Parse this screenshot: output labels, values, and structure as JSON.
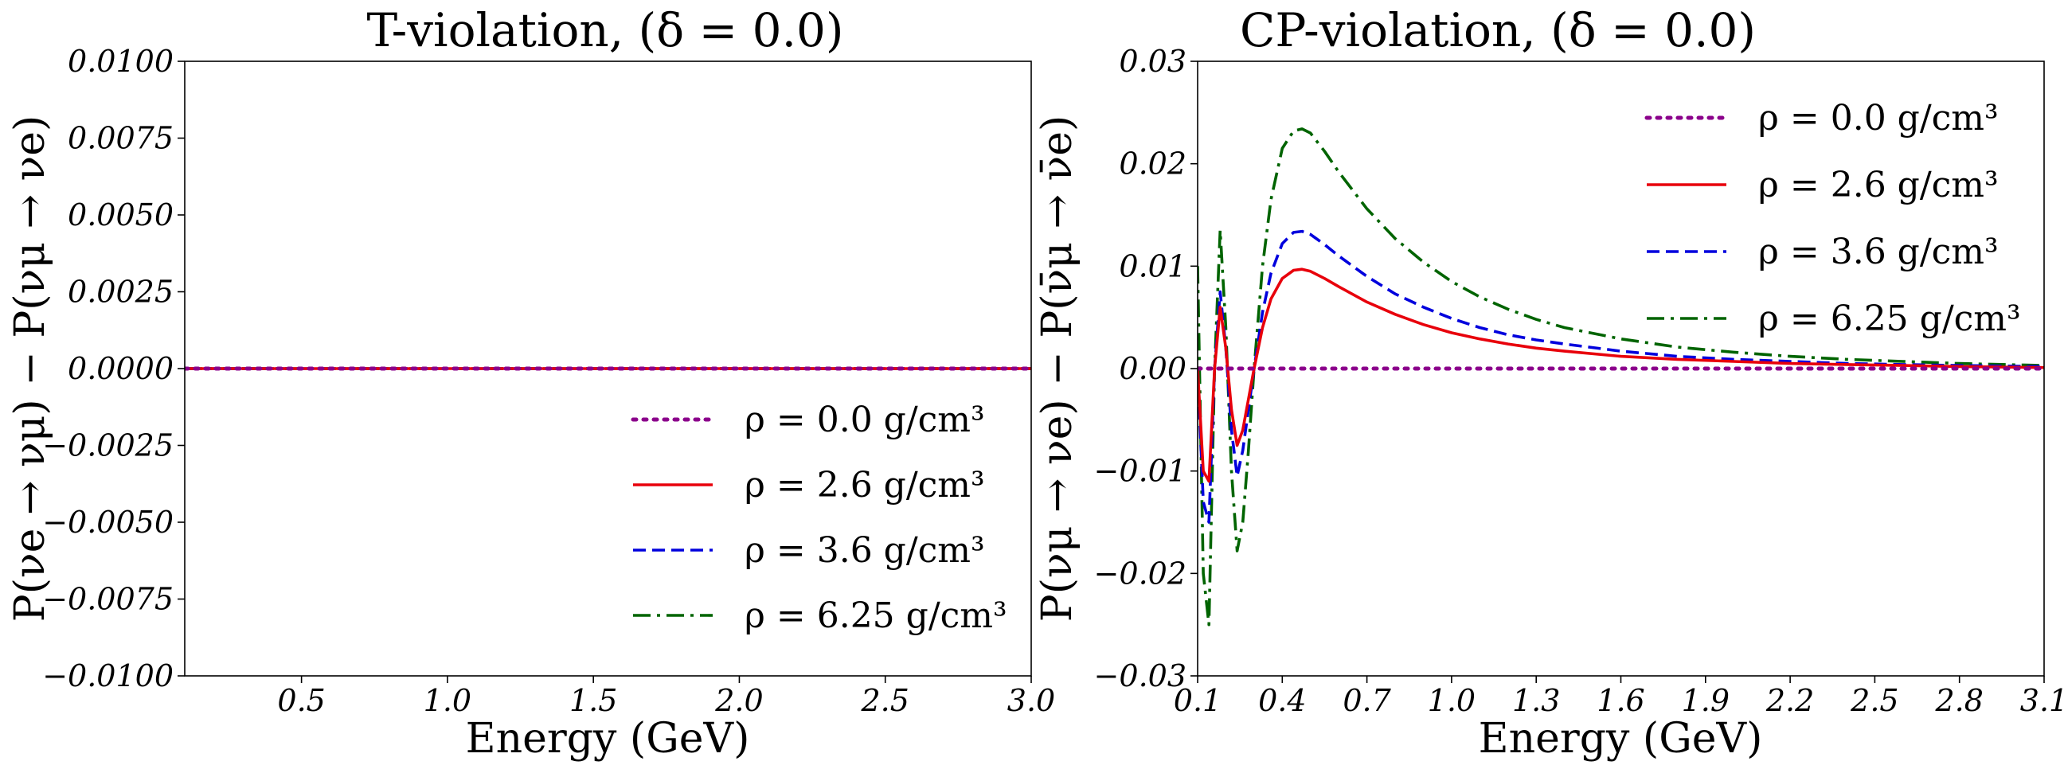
{
  "chart_data": [
    {
      "type": "line",
      "title": "T-violation,  (δ = 0.0)",
      "xlabel": "Energy (GeV)",
      "ylabel": "P(νe → νμ) − P(νμ → νe)",
      "xlim": [
        0.1,
        3.0
      ],
      "ylim": [
        -0.01,
        0.01
      ],
      "xticks": [
        0.5,
        1.0,
        1.5,
        2.0,
        2.5,
        3.0
      ],
      "xtick_labels": [
        "0.5",
        "1.0",
        "1.5",
        "2.0",
        "2.5",
        "3.0"
      ],
      "yticks": [
        -0.01,
        -0.0075,
        -0.005,
        -0.0025,
        0.0,
        0.0025,
        0.005,
        0.0075,
        0.01
      ],
      "ytick_labels": [
        "−0.0100",
        "−0.0075",
        "−0.0050",
        "−0.0025",
        "0.0000",
        "0.0025",
        "0.0050",
        "0.0075",
        "0.0100"
      ],
      "legend_position": "lower-right",
      "series": [
        {
          "name": "ρ = 0.0 g/cm³",
          "color": "#8b008b",
          "dash": "dotted",
          "x": [
            0.1,
            3.0
          ],
          "y": [
            0.0,
            0.0
          ]
        },
        {
          "name": "ρ = 2.6 g/cm³",
          "color": "#e8000b",
          "dash": "solid",
          "x": [
            0.1,
            3.0
          ],
          "y": [
            0.0,
            0.0
          ]
        },
        {
          "name": "ρ = 3.6 g/cm³",
          "color": "#0000dd",
          "dash": "dashed",
          "x": [
            0.1,
            3.0
          ],
          "y": [
            0.0,
            0.0
          ]
        },
        {
          "name": "ρ = 6.25 g/cm³",
          "color": "#006400",
          "dash": "dashdot",
          "x": [
            0.1,
            3.0
          ],
          "y": [
            0.0,
            0.0
          ]
        }
      ]
    },
    {
      "type": "line",
      "title": "CP-violation,  (δ = 0.0)",
      "xlabel": "Energy (GeV)",
      "ylabel": "P(νμ → νe) − P(ν̄μ → ν̄e)",
      "xlim": [
        0.1,
        3.1
      ],
      "ylim": [
        -0.03,
        0.03
      ],
      "xticks": [
        0.1,
        0.4,
        0.7,
        1.0,
        1.3,
        1.6,
        1.9,
        2.2,
        2.5,
        2.8,
        3.1
      ],
      "xtick_labels": [
        "0.1",
        "0.4",
        "0.7",
        "1.0",
        "1.3",
        "1.6",
        "1.9",
        "2.2",
        "2.5",
        "2.8",
        "3.1"
      ],
      "yticks": [
        -0.03,
        -0.02,
        -0.01,
        0.0,
        0.01,
        0.02,
        0.03
      ],
      "ytick_labels": [
        "−0.03",
        "−0.02",
        "−0.01",
        "0.00",
        "0.01",
        "0.02",
        "0.03"
      ],
      "legend_position": "upper-right",
      "series": [
        {
          "name": "ρ = 0.0 g/cm³",
          "color": "#8b008b",
          "dash": "dotted",
          "x": [
            0.1,
            3.1
          ],
          "y": [
            0.0,
            0.0
          ]
        },
        {
          "name": "ρ = 2.6 g/cm³",
          "color": "#e8000b",
          "dash": "solid",
          "x": [
            0.1,
            0.12,
            0.14,
            0.16,
            0.18,
            0.2,
            0.22,
            0.24,
            0.26,
            0.28,
            0.3,
            0.33,
            0.36,
            0.4,
            0.44,
            0.47,
            0.5,
            0.55,
            0.6,
            0.7,
            0.8,
            0.9,
            1.0,
            1.1,
            1.2,
            1.3,
            1.4,
            1.6,
            1.8,
            2.0,
            2.2,
            2.4,
            2.6,
            2.8,
            3.1
          ],
          "y": [
            0.0,
            -0.01,
            -0.011,
            0.0,
            0.006,
            0.002,
            -0.004,
            -0.0075,
            -0.006,
            -0.003,
            0.0,
            0.004,
            0.0068,
            0.0088,
            0.0096,
            0.0097,
            0.0095,
            0.0088,
            0.008,
            0.0065,
            0.0053,
            0.0043,
            0.0035,
            0.0029,
            0.0024,
            0.002,
            0.0017,
            0.0012,
            0.0009,
            0.0007,
            0.0005,
            0.0004,
            0.0003,
            0.0002,
            0.0001
          ]
        },
        {
          "name": "ρ = 3.6 g/cm³",
          "color": "#0000dd",
          "dash": "dashed",
          "x": [
            0.1,
            0.12,
            0.14,
            0.16,
            0.18,
            0.2,
            0.22,
            0.24,
            0.26,
            0.28,
            0.3,
            0.33,
            0.36,
            0.4,
            0.44,
            0.47,
            0.5,
            0.55,
            0.6,
            0.7,
            0.8,
            0.9,
            1.0,
            1.1,
            1.2,
            1.3,
            1.4,
            1.6,
            1.8,
            2.0,
            2.2,
            2.4,
            2.6,
            2.8,
            3.1
          ],
          "y": [
            0.0,
            -0.013,
            -0.015,
            0.0,
            0.0075,
            0.002,
            -0.006,
            -0.0105,
            -0.008,
            -0.004,
            0.0,
            0.0055,
            0.0093,
            0.0122,
            0.0133,
            0.0134,
            0.0131,
            0.0121,
            0.011,
            0.009,
            0.0073,
            0.006,
            0.0049,
            0.004,
            0.0033,
            0.0028,
            0.0024,
            0.0017,
            0.0012,
            0.0009,
            0.0007,
            0.0005,
            0.0004,
            0.0003,
            0.0002
          ]
        },
        {
          "name": "ρ = 6.25 g/cm³",
          "color": "#006400",
          "dash": "dashdot",
          "x": [
            0.1,
            0.12,
            0.14,
            0.16,
            0.18,
            0.2,
            0.22,
            0.24,
            0.26,
            0.28,
            0.3,
            0.33,
            0.36,
            0.4,
            0.44,
            0.47,
            0.5,
            0.55,
            0.6,
            0.7,
            0.8,
            0.9,
            1.0,
            1.1,
            1.2,
            1.3,
            1.4,
            1.6,
            1.8,
            2.0,
            2.2,
            2.4,
            2.6,
            2.8,
            3.1
          ],
          "y": [
            0.01,
            -0.02,
            -0.025,
            0.0,
            0.0135,
            0.004,
            -0.01,
            -0.0178,
            -0.015,
            -0.008,
            0.0,
            0.01,
            0.0165,
            0.0215,
            0.0232,
            0.0234,
            0.023,
            0.0212,
            0.0192,
            0.0156,
            0.0127,
            0.0104,
            0.0085,
            0.007,
            0.0058,
            0.0048,
            0.004,
            0.0029,
            0.0021,
            0.0016,
            0.0012,
            0.0009,
            0.0007,
            0.0005,
            0.0003
          ]
        }
      ]
    }
  ]
}
